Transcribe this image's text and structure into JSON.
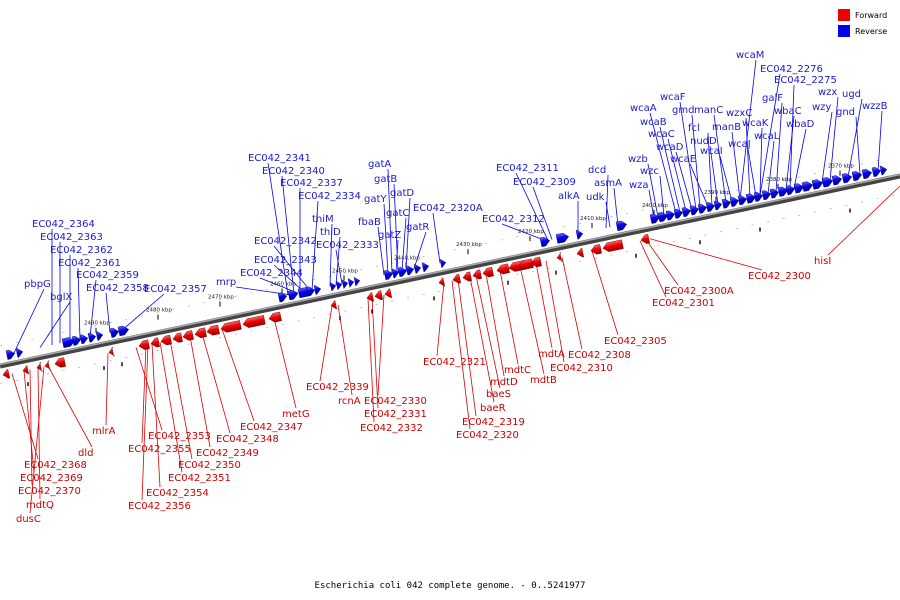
{
  "legend": {
    "forward_label": "Forward",
    "reverse_label": "Reverse",
    "forward_color": "#ee0000",
    "reverse_color": "#0000ee"
  },
  "caption": "Escherichia coli 042 complete genome. - 0..5241977",
  "ticks": [
    "2370 kbp",
    "2380 kbp",
    "2390 kbp",
    "2400 kbp",
    "2410 kbp",
    "2420 kbp",
    "2430 kbp",
    "2440 kbp",
    "2450 kbp",
    "2460 kbp",
    "2470 kbp",
    "2480 kbp",
    "2490 kbp"
  ],
  "reverse_genes": [
    "EC042_2364",
    "EC042_2363",
    "EC042_2362",
    "EC042_2361",
    "EC042_2359",
    "pbpG",
    "bglX",
    "EC042_2358",
    "EC042_2357",
    "mrp",
    "EC042_2344",
    "EC042_2343",
    "EC042_2342",
    "EC042_2341",
    "EC042_2340",
    "EC042_2337",
    "EC042_2334",
    "thiM",
    "thiD",
    "EC042_2333",
    "gatA",
    "gatB",
    "gatY",
    "gatD",
    "fbaB",
    "gatC",
    "gatZ",
    "gatR",
    "EC042_2320A",
    "EC042_2312",
    "EC042_2311",
    "EC042_2309",
    "alkA",
    "dcd",
    "udk",
    "asmA",
    "wza",
    "wzb",
    "wzc",
    "wcaA",
    "wcaB",
    "wcaC",
    "wcaD",
    "wcaE",
    "wcaF",
    "gmd",
    "fcl",
    "nudD",
    "wcaI",
    "manC",
    "manB",
    "wzxC",
    "wcaJ",
    "wcaK",
    "wcaL",
    "galF",
    "wbaC",
    "wbaD",
    "wcaM",
    "EC042_2276",
    "EC042_2275",
    "wzx",
    "wzy",
    "ugd",
    "gnd",
    "wzzB"
  ],
  "forward_genes": [
    "EC042_2368",
    "EC042_2369",
    "EC042_2370",
    "mdtQ",
    "dusC",
    "dld",
    "mlrA",
    "EC042_2353",
    "EC042_2355",
    "EC042_2349",
    "EC042_2350",
    "EC042_2351",
    "EC042_2354",
    "EC042_2356",
    "EC042_2348",
    "EC042_2347",
    "metG",
    "EC042_2339",
    "rcnA",
    "EC042_2330",
    "EC042_2331",
    "EC042_2332",
    "EC042_2321",
    "baeS",
    "baeR",
    "EC042_2319",
    "EC042_2320",
    "mdtD",
    "mdtC",
    "mdtB",
    "mdtA",
    "EC042_2310",
    "EC042_2308",
    "EC042_2305",
    "EC042_2301",
    "EC042_2300A",
    "EC042_2300",
    "hisI"
  ]
}
